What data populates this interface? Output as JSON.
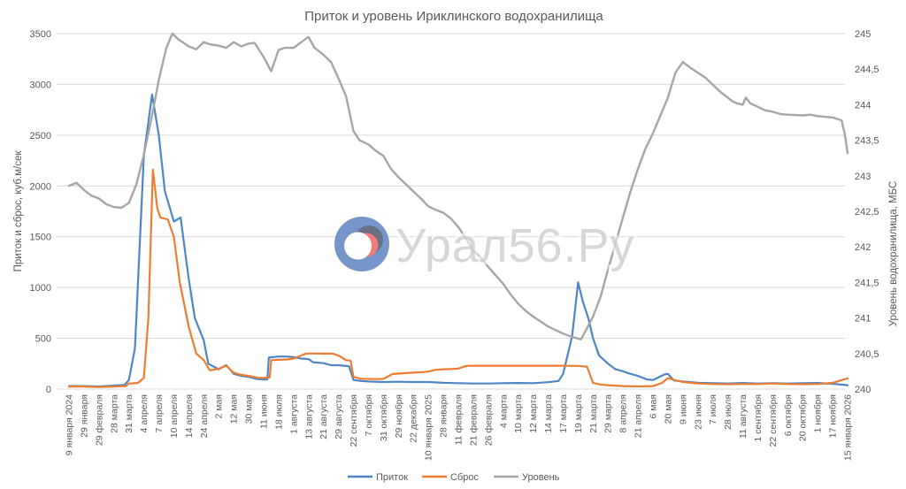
{
  "watermark": {
    "text": "Урал56.Ру"
  },
  "chart_data": {
    "type": "line",
    "title": "Приток и уровень Ириклинского водохранилища",
    "grid": true,
    "legend_position": "bottom",
    "text_color": "#595959",
    "grid_color": "#d9d9d9",
    "left_axis": {
      "title": "Приток и сброс, куб.м/сек",
      "lim": [
        0,
        3500
      ],
      "ticks": [
        {
          "v": 0,
          "label": "0"
        },
        {
          "v": 500,
          "label": "500"
        },
        {
          "v": 1000,
          "label": "1000"
        },
        {
          "v": 1500,
          "label": "1500"
        },
        {
          "v": 2000,
          "label": "2000"
        },
        {
          "v": 2500,
          "label": "2500"
        },
        {
          "v": 3000,
          "label": "3000"
        },
        {
          "v": 3500,
          "label": "3500"
        }
      ]
    },
    "right_axis": {
      "title": "Уровень водохранилища, МБС",
      "lim": [
        240,
        245
      ],
      "ticks": [
        {
          "v": 240,
          "label": "240"
        },
        {
          "v": 240.5,
          "label": "240,5"
        },
        {
          "v": 241,
          "label": "241"
        },
        {
          "v": 241.5,
          "label": "241,5"
        },
        {
          "v": 242,
          "label": "242"
        },
        {
          "v": 242.5,
          "label": "242,5"
        },
        {
          "v": 243,
          "label": "243"
        },
        {
          "v": 243.5,
          "label": "243,5"
        },
        {
          "v": 244,
          "label": "244"
        },
        {
          "v": 244.5,
          "label": "244,5"
        },
        {
          "v": 245,
          "label": "245"
        }
      ]
    },
    "categories": [
      "9 января 2024",
      "29 января",
      "29 февраля",
      "28 марта",
      "31 марта",
      "4 апреля",
      "7 апреля",
      "10 апреля",
      "14 апреля",
      "24 апреля",
      "2 мая",
      "12 мая",
      "30 мая",
      "11 июня",
      "18 июля",
      "1 августа",
      "13 августа",
      "21 августа",
      "29 августа",
      "22 сентября",
      "7 октября",
      "31 октября",
      "29 ноября",
      "22 декабря",
      "10 января 2025",
      "28 января",
      "11 февраля",
      "21 февраля",
      "26 февраля",
      "4 марта",
      "10 марта",
      "12 марта",
      "14 марта",
      "17 марта",
      "19 марта",
      "21 марта",
      "29 марта",
      "8 апреля",
      "21 апреля",
      "6 мая",
      "20 мая",
      "9 июня",
      "23 июня",
      "7 июля",
      "28 июля",
      "11 августа",
      "1 сентября",
      "22 сентября",
      "6 октября",
      "20 октября",
      "1 ноября",
      "17 ноября",
      "15 января 2026"
    ],
    "series": [
      {
        "name": "Приток",
        "axis": "left",
        "color": "#4e86c5",
        "width": 2.2,
        "points": [
          [
            0,
            30
          ],
          [
            1,
            30
          ],
          [
            2,
            25
          ],
          [
            3,
            35
          ],
          [
            3.7,
            40
          ],
          [
            4,
            90
          ],
          [
            4.4,
            400
          ],
          [
            5,
            2300
          ],
          [
            5.55,
            2900
          ],
          [
            6,
            2500
          ],
          [
            6.4,
            1950
          ],
          [
            7,
            1650
          ],
          [
            7.45,
            1690
          ],
          [
            7.8,
            1300
          ],
          [
            8,
            1080
          ],
          [
            8.4,
            700
          ],
          [
            9,
            480
          ],
          [
            9.3,
            250
          ],
          [
            10,
            195
          ],
          [
            10.5,
            235
          ],
          [
            11,
            150
          ],
          [
            11.5,
            130
          ],
          [
            12,
            120
          ],
          [
            12.5,
            100
          ],
          [
            13,
            95
          ],
          [
            13.25,
            95
          ],
          [
            13.35,
            310
          ],
          [
            14,
            320
          ],
          [
            14.5,
            320
          ],
          [
            15,
            315
          ],
          [
            15.5,
            300
          ],
          [
            16,
            295
          ],
          [
            16.3,
            265
          ],
          [
            17,
            255
          ],
          [
            17.5,
            235
          ],
          [
            18,
            235
          ],
          [
            18.7,
            225
          ],
          [
            19,
            90
          ],
          [
            19.5,
            80
          ],
          [
            20,
            75
          ],
          [
            21,
            70
          ],
          [
            22,
            72
          ],
          [
            23,
            70
          ],
          [
            24,
            70
          ],
          [
            25,
            62
          ],
          [
            26,
            58
          ],
          [
            27,
            55
          ],
          [
            28,
            55
          ],
          [
            29,
            58
          ],
          [
            30,
            60
          ],
          [
            31,
            58
          ],
          [
            32,
            68
          ],
          [
            32.7,
            80
          ],
          [
            33,
            150
          ],
          [
            33.6,
            520
          ],
          [
            34,
            1050
          ],
          [
            34.3,
            870
          ],
          [
            34.7,
            690
          ],
          [
            35,
            500
          ],
          [
            35.4,
            330
          ],
          [
            36,
            250
          ],
          [
            36.5,
            195
          ],
          [
            37,
            175
          ],
          [
            37.5,
            150
          ],
          [
            38,
            130
          ],
          [
            38.6,
            95
          ],
          [
            39,
            90
          ],
          [
            39.8,
            145
          ],
          [
            40,
            150
          ],
          [
            40.4,
            85
          ],
          [
            41,
            75
          ],
          [
            42,
            62
          ],
          [
            43,
            58
          ],
          [
            44,
            55
          ],
          [
            45,
            60
          ],
          [
            46,
            55
          ],
          [
            47,
            58
          ],
          [
            48,
            55
          ],
          [
            49,
            58
          ],
          [
            50,
            60
          ],
          [
            51,
            52
          ],
          [
            52,
            38
          ]
        ]
      },
      {
        "name": "Сброс",
        "axis": "left",
        "color": "#ed7d31",
        "width": 2.2,
        "points": [
          [
            0,
            25
          ],
          [
            1,
            25
          ],
          [
            2,
            20
          ],
          [
            3,
            25
          ],
          [
            3.8,
            30
          ],
          [
            4,
            55
          ],
          [
            4.6,
            60
          ],
          [
            5,
            110
          ],
          [
            5.3,
            700
          ],
          [
            5.6,
            2160
          ],
          [
            5.9,
            1780
          ],
          [
            6.1,
            1690
          ],
          [
            6.6,
            1670
          ],
          [
            7,
            1500
          ],
          [
            7.4,
            1050
          ],
          [
            8,
            610
          ],
          [
            8.5,
            350
          ],
          [
            9,
            285
          ],
          [
            9.4,
            185
          ],
          [
            10,
            200
          ],
          [
            10.5,
            232
          ],
          [
            11,
            160
          ],
          [
            11.5,
            140
          ],
          [
            12,
            130
          ],
          [
            12.6,
            112
          ],
          [
            13,
            110
          ],
          [
            13.4,
            115
          ],
          [
            13.5,
            285
          ],
          [
            14,
            288
          ],
          [
            14.6,
            292
          ],
          [
            15,
            300
          ],
          [
            15.8,
            348
          ],
          [
            16,
            350
          ],
          [
            16.7,
            350
          ],
          [
            17,
            348
          ],
          [
            17.6,
            350
          ],
          [
            18,
            330
          ],
          [
            18.5,
            285
          ],
          [
            18.8,
            280
          ],
          [
            19,
            120
          ],
          [
            19.5,
            102
          ],
          [
            20,
            100
          ],
          [
            20.5,
            98
          ],
          [
            21,
            100
          ],
          [
            21.6,
            148
          ],
          [
            22,
            152
          ],
          [
            22.5,
            158
          ],
          [
            23,
            162
          ],
          [
            23.7,
            168
          ],
          [
            24,
            172
          ],
          [
            24.5,
            190
          ],
          [
            25,
            195
          ],
          [
            25.6,
            198
          ],
          [
            26,
            202
          ],
          [
            26.5,
            228
          ],
          [
            27,
            230
          ],
          [
            28,
            230
          ],
          [
            29,
            230
          ],
          [
            30,
            230
          ],
          [
            31,
            230
          ],
          [
            32,
            230
          ],
          [
            33,
            230
          ],
          [
            34,
            228
          ],
          [
            34.6,
            220
          ],
          [
            35,
            60
          ],
          [
            35.5,
            45
          ],
          [
            36,
            38
          ],
          [
            37,
            30
          ],
          [
            38,
            26
          ],
          [
            39,
            30
          ],
          [
            39.6,
            60
          ],
          [
            40,
            108
          ],
          [
            40.5,
            88
          ],
          [
            41,
            70
          ],
          [
            42,
            55
          ],
          [
            43,
            50
          ],
          [
            44,
            48
          ],
          [
            45,
            50
          ],
          [
            46,
            50
          ],
          [
            47,
            55
          ],
          [
            48,
            50
          ],
          [
            49,
            48
          ],
          [
            50,
            50
          ],
          [
            51,
            62
          ],
          [
            52,
            105
          ]
        ]
      },
      {
        "name": "Уровень",
        "axis": "right",
        "color": "#a6a6a6",
        "width": 2.4,
        "points": [
          [
            0,
            242.86
          ],
          [
            0.5,
            242.9
          ],
          [
            1,
            242.8
          ],
          [
            1.5,
            242.72
          ],
          [
            2,
            242.68
          ],
          [
            2.5,
            242.6
          ],
          [
            3,
            242.56
          ],
          [
            3.5,
            242.55
          ],
          [
            4,
            242.62
          ],
          [
            4.5,
            242.88
          ],
          [
            5,
            243.3
          ],
          [
            5.5,
            243.8
          ],
          [
            6,
            244.35
          ],
          [
            6.5,
            244.8
          ],
          [
            6.9,
            245.0
          ],
          [
            7.3,
            244.92
          ],
          [
            8,
            244.82
          ],
          [
            8.5,
            244.78
          ],
          [
            9,
            244.88
          ],
          [
            9.4,
            244.85
          ],
          [
            10,
            244.83
          ],
          [
            10.5,
            244.8
          ],
          [
            11,
            244.88
          ],
          [
            11.5,
            244.82
          ],
          [
            12,
            244.86
          ],
          [
            12.4,
            244.87
          ],
          [
            13,
            244.67
          ],
          [
            13.5,
            244.47
          ],
          [
            14,
            244.77
          ],
          [
            14.4,
            244.8
          ],
          [
            15,
            244.8
          ],
          [
            15.9,
            244.94
          ],
          [
            16,
            244.95
          ],
          [
            16.4,
            244.8
          ],
          [
            17,
            244.7
          ],
          [
            17.5,
            244.6
          ],
          [
            18,
            244.37
          ],
          [
            18.5,
            244.12
          ],
          [
            19,
            243.63
          ],
          [
            19.4,
            243.5
          ],
          [
            20,
            243.44
          ],
          [
            20.5,
            243.35
          ],
          [
            21,
            243.28
          ],
          [
            21.5,
            243.1
          ],
          [
            22,
            242.98
          ],
          [
            22.5,
            242.88
          ],
          [
            23,
            242.78
          ],
          [
            23.5,
            242.68
          ],
          [
            24,
            242.57
          ],
          [
            24.5,
            242.52
          ],
          [
            25,
            242.48
          ],
          [
            25.5,
            242.4
          ],
          [
            26,
            242.28
          ],
          [
            26.5,
            242.12
          ],
          [
            27,
            241.95
          ],
          [
            27.5,
            241.85
          ],
          [
            28,
            241.72
          ],
          [
            28.5,
            241.6
          ],
          [
            29,
            241.48
          ],
          [
            29.5,
            241.33
          ],
          [
            30,
            241.2
          ],
          [
            30.5,
            241.1
          ],
          [
            31,
            241.02
          ],
          [
            31.5,
            240.95
          ],
          [
            32,
            240.88
          ],
          [
            32.5,
            240.83
          ],
          [
            33,
            240.78
          ],
          [
            33.5,
            240.74
          ],
          [
            34,
            240.71
          ],
          [
            34.2,
            240.7
          ],
          [
            35,
            241.02
          ],
          [
            35.5,
            241.3
          ],
          [
            36,
            241.68
          ],
          [
            36.5,
            242.05
          ],
          [
            37,
            242.42
          ],
          [
            37.5,
            242.78
          ],
          [
            38,
            243.1
          ],
          [
            38.5,
            243.38
          ],
          [
            39,
            243.6
          ],
          [
            39.5,
            243.85
          ],
          [
            40,
            244.1
          ],
          [
            40.5,
            244.45
          ],
          [
            41,
            244.6
          ],
          [
            41.5,
            244.52
          ],
          [
            42,
            244.45
          ],
          [
            42.5,
            244.38
          ],
          [
            43,
            244.28
          ],
          [
            43.5,
            244.18
          ],
          [
            44,
            244.1
          ],
          [
            44.3,
            244.05
          ],
          [
            44.6,
            244.02
          ],
          [
            45,
            244.0
          ],
          [
            45.2,
            244.1
          ],
          [
            45.5,
            244.02
          ],
          [
            46,
            243.97
          ],
          [
            46.5,
            243.92
          ],
          [
            47,
            243.9
          ],
          [
            47.5,
            243.87
          ],
          [
            48,
            243.86
          ],
          [
            49,
            243.85
          ],
          [
            49.5,
            243.86
          ],
          [
            50,
            243.84
          ],
          [
            51,
            243.82
          ],
          [
            51.6,
            243.78
          ],
          [
            51.8,
            243.6
          ],
          [
            52,
            243.32
          ]
        ]
      }
    ]
  }
}
